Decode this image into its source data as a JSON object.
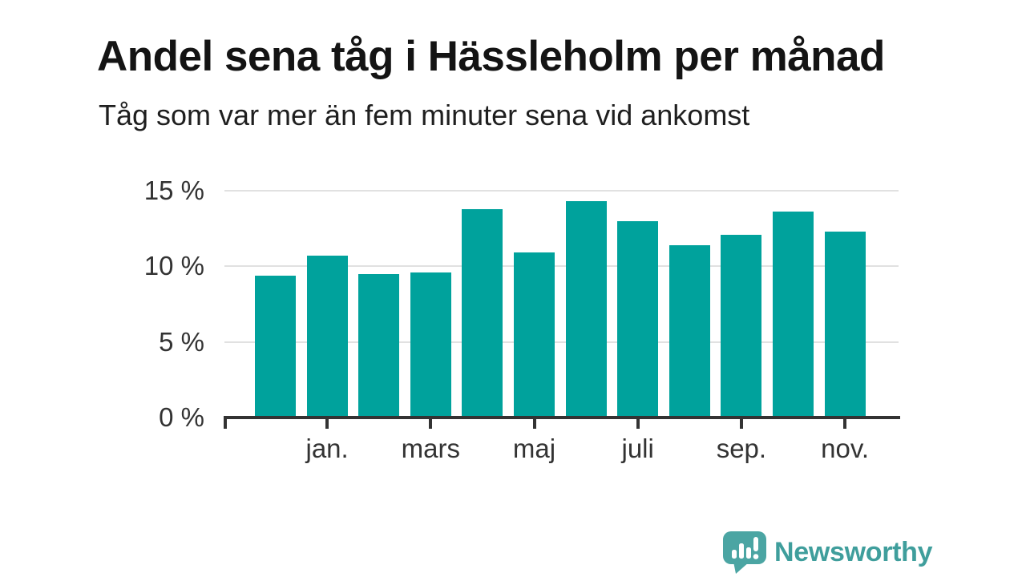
{
  "title": "Andel sena tåg i Hässleholm per månad",
  "subtitle": "Tåg som var mer än fem minuter sena vid ankomst",
  "chart_data": {
    "type": "bar",
    "title": "Andel sena tåg i Hässleholm per månad",
    "subtitle": "Tåg som var mer än fem minuter sena vid ankomst",
    "categories": [
      "",
      "jan.",
      "",
      "mars",
      "",
      "maj",
      "",
      "juli",
      "",
      "sep.",
      "",
      "nov."
    ],
    "values": [
      9.4,
      10.7,
      9.5,
      9.6,
      13.8,
      10.9,
      14.3,
      13.0,
      11.4,
      12.1,
      13.6,
      12.3
    ],
    "unit": "%",
    "visible_x_tick_labels": [
      "jan.",
      "mars",
      "maj",
      "juli",
      "sep.",
      "nov."
    ],
    "y_ticks": [
      {
        "value": 0,
        "label": "0 %"
      },
      {
        "value": 5,
        "label": "5 %"
      },
      {
        "value": 10,
        "label": "10 %"
      },
      {
        "value": 15,
        "label": "15 %"
      }
    ],
    "ylim": [
      0,
      15
    ],
    "grid": true,
    "legend_position": "none",
    "bar_color": "#00a29c",
    "gridline_color": "#e1e1e1",
    "axis_color": "#333333"
  },
  "branding": {
    "logo_text": "Newsworthy",
    "logo_icon": "speech-bubble-bar-chart-icon",
    "logo_text_color": "#3f9e9c",
    "logo_icon_color": "#4ba5a3"
  }
}
